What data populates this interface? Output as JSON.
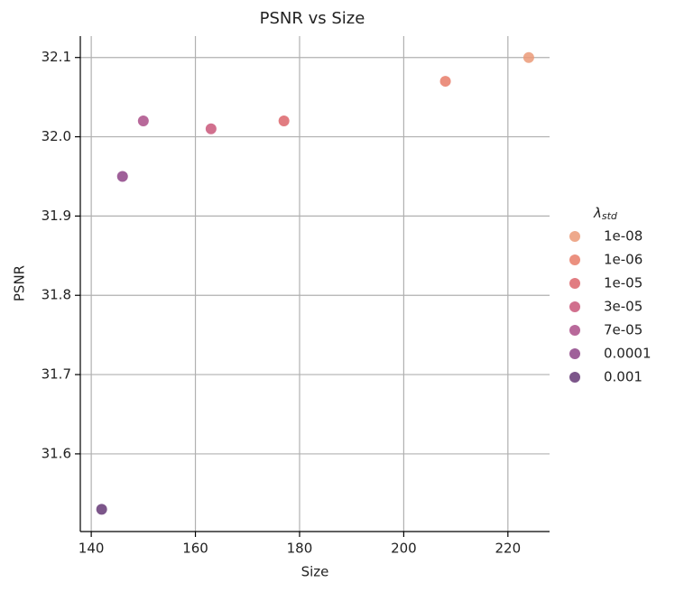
{
  "chart_data": {
    "type": "scatter",
    "title": "PSNR vs Size",
    "x_label": "Size",
    "y_label": "PSNR",
    "legend_title": [
      "λ",
      "std"
    ],
    "legend_position": "right",
    "grid": true,
    "marker_opacity": 0.85,
    "xlim": [
      137.9,
      228
    ],
    "ylim": [
      31.502,
      32.127
    ],
    "xticks": [
      140,
      160,
      180,
      200,
      220
    ],
    "yticks": [
      31.6,
      31.7,
      31.8,
      31.9,
      {
        "value": 32,
        "label": "32.0"
      },
      32.1
    ],
    "series": [
      {
        "name": "1e-08",
        "color": "#eb9a78",
        "x": [
          224
        ],
        "values": [
          32.1
        ]
      },
      {
        "name": "1e-06",
        "color": "#e87c68",
        "x": [
          208
        ],
        "values": [
          32.07
        ]
      },
      {
        "name": "1e-05",
        "color": "#dc656b",
        "x": [
          177
        ],
        "values": [
          32.02
        ]
      },
      {
        "name": "3e-05",
        "color": "#c9577a",
        "x": [
          163
        ],
        "values": [
          32.01
        ]
      },
      {
        "name": "7e-05",
        "color": "#ac4f88",
        "x": [
          150
        ],
        "values": [
          32.02
        ]
      },
      {
        "name": "0.0001",
        "color": "#8e4487",
        "x": [
          146
        ],
        "values": [
          31.95
        ]
      },
      {
        "name": "0.001",
        "color": "#653875",
        "x": [
          142
        ],
        "values": [
          31.53
        ]
      }
    ]
  }
}
